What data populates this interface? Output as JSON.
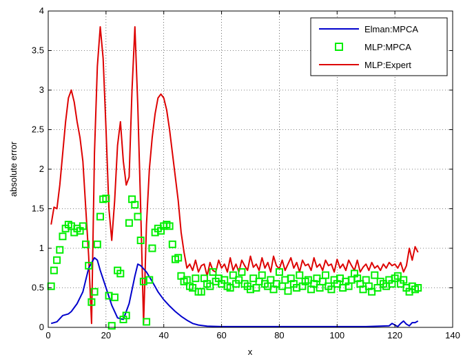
{
  "chart_data": {
    "type": "line",
    "xlabel": "x",
    "ylabel": "absolute error",
    "xlim": [
      0,
      140
    ],
    "ylim": [
      0,
      4
    ],
    "xticks": [
      "0",
      "20",
      "40",
      "60",
      "80",
      "100",
      "120",
      "140"
    ],
    "yticks": [
      "0",
      "0.5",
      "1",
      "1.5",
      "2",
      "2.5",
      "3",
      "3.5",
      "4"
    ],
    "grid": true,
    "legend_position": "top-right",
    "series": [
      {
        "name": "Elman:MPCA",
        "style": "line",
        "color": "#0000cc",
        "x": [
          1,
          3,
          5,
          7,
          8,
          10,
          12,
          14,
          16,
          17,
          18,
          20,
          22,
          24,
          26,
          28,
          30,
          31,
          32,
          34,
          36,
          38,
          40,
          42,
          44,
          46,
          48,
          50,
          52,
          55,
          60,
          70,
          80,
          90,
          100,
          110,
          118,
          119,
          120,
          121,
          122,
          123,
          124,
          125,
          126,
          127,
          128
        ],
        "y": [
          0.05,
          0.07,
          0.15,
          0.17,
          0.2,
          0.3,
          0.45,
          0.75,
          0.88,
          0.85,
          0.72,
          0.5,
          0.28,
          0.12,
          0.1,
          0.3,
          0.65,
          0.8,
          0.78,
          0.7,
          0.58,
          0.45,
          0.35,
          0.27,
          0.2,
          0.14,
          0.09,
          0.05,
          0.03,
          0.015,
          0.01,
          0.01,
          0.01,
          0.01,
          0.01,
          0.01,
          0.02,
          0.05,
          0.03,
          0.01,
          0.05,
          0.08,
          0.04,
          0.02,
          0.06,
          0.06,
          0.08
        ]
      },
      {
        "name": "MLP:MPCA",
        "style": "marker",
        "color": "#00ee00",
        "x": [
          1,
          2,
          3,
          4,
          5,
          6,
          7,
          8,
          9,
          10,
          11,
          12,
          13,
          14,
          15,
          16,
          17,
          18,
          19,
          20,
          21,
          22,
          23,
          24,
          25,
          26,
          27,
          28,
          29,
          30,
          31,
          32,
          33,
          34,
          35,
          36,
          37,
          38,
          39,
          40,
          41,
          42,
          43,
          44,
          45,
          46,
          47,
          48,
          49,
          50,
          51,
          52,
          53,
          54,
          55,
          56,
          57,
          58,
          59,
          60,
          61,
          62,
          63,
          64,
          65,
          66,
          67,
          68,
          69,
          70,
          71,
          72,
          73,
          74,
          75,
          76,
          77,
          78,
          79,
          80,
          81,
          82,
          83,
          84,
          85,
          86,
          87,
          88,
          89,
          90,
          91,
          92,
          93,
          94,
          95,
          96,
          97,
          98,
          99,
          100,
          101,
          102,
          103,
          104,
          105,
          106,
          107,
          108,
          109,
          110,
          111,
          112,
          113,
          114,
          115,
          116,
          117,
          118,
          119,
          120,
          121,
          122,
          123,
          124,
          125,
          126,
          127,
          128
        ],
        "y": [
          0.52,
          0.72,
          0.85,
          0.98,
          1.15,
          1.25,
          1.3,
          1.28,
          1.2,
          1.25,
          1.22,
          1.28,
          1.05,
          0.78,
          0.32,
          0.45,
          1.05,
          1.4,
          1.62,
          1.63,
          0.4,
          0.02,
          0.38,
          0.72,
          0.68,
          0.1,
          0.15,
          1.32,
          1.62,
          1.55,
          1.4,
          1.1,
          0.58,
          0.07,
          0.6,
          1.0,
          1.2,
          1.25,
          1.22,
          1.28,
          1.3,
          1.28,
          1.05,
          0.86,
          0.88,
          0.65,
          0.58,
          0.6,
          0.52,
          0.5,
          0.62,
          0.45,
          0.45,
          0.62,
          0.55,
          0.52,
          0.7,
          0.58,
          0.62,
          0.55,
          0.6,
          0.52,
          0.5,
          0.66,
          0.55,
          0.6,
          0.7,
          0.55,
          0.52,
          0.48,
          0.62,
          0.5,
          0.58,
          0.66,
          0.55,
          0.52,
          0.6,
          0.48,
          0.55,
          0.7,
          0.52,
          0.6,
          0.46,
          0.62,
          0.55,
          0.5,
          0.66,
          0.52,
          0.58,
          0.6,
          0.48,
          0.55,
          0.62,
          0.5,
          0.58,
          0.66,
          0.52,
          0.48,
          0.6,
          0.55,
          0.62,
          0.5,
          0.58,
          0.52,
          0.6,
          0.68,
          0.62,
          0.55,
          0.48,
          0.6,
          0.52,
          0.45,
          0.66,
          0.5,
          0.58,
          0.55,
          0.52,
          0.6,
          0.55,
          0.62,
          0.65,
          0.55,
          0.6,
          0.5,
          0.45,
          0.52,
          0.48,
          0.5
        ]
      },
      {
        "name": "MLP:Expert",
        "style": "line",
        "color": "#dd0000",
        "x": [
          1,
          2,
          3,
          4,
          5,
          6,
          7,
          8,
          9,
          10,
          11,
          12,
          13,
          14,
          15,
          16,
          17,
          18,
          19,
          20,
          21,
          22,
          23,
          24,
          25,
          26,
          27,
          28,
          29,
          30,
          31,
          32,
          33,
          34,
          35,
          36,
          37,
          38,
          39,
          40,
          41,
          42,
          43,
          44,
          45,
          46,
          47,
          48,
          49,
          50,
          51,
          52,
          53,
          54,
          55,
          56,
          57,
          58,
          59,
          60,
          61,
          62,
          63,
          64,
          65,
          66,
          67,
          68,
          69,
          70,
          71,
          72,
          73,
          74,
          75,
          76,
          77,
          78,
          79,
          80,
          81,
          82,
          83,
          84,
          85,
          86,
          87,
          88,
          89,
          90,
          91,
          92,
          93,
          94,
          95,
          96,
          97,
          98,
          99,
          100,
          101,
          102,
          103,
          104,
          105,
          106,
          107,
          108,
          109,
          110,
          111,
          112,
          113,
          114,
          115,
          116,
          117,
          118,
          119,
          120,
          121,
          122,
          123,
          124,
          125,
          126,
          127,
          128
        ],
        "y": [
          1.3,
          1.52,
          1.5,
          1.8,
          2.2,
          2.6,
          2.9,
          3.0,
          2.85,
          2.6,
          2.4,
          2.1,
          1.5,
          0.9,
          0.05,
          2.2,
          3.3,
          3.8,
          3.4,
          2.5,
          1.5,
          1.1,
          1.6,
          2.3,
          2.6,
          2.1,
          1.8,
          1.9,
          3.0,
          3.8,
          2.8,
          1.5,
          0.05,
          1.3,
          2.0,
          2.4,
          2.7,
          2.9,
          2.95,
          2.9,
          2.75,
          2.5,
          2.2,
          1.9,
          1.6,
          1.2,
          0.95,
          0.75,
          0.8,
          0.72,
          0.85,
          0.7,
          0.78,
          0.8,
          0.65,
          0.82,
          0.72,
          0.7,
          0.85,
          0.75,
          0.8,
          0.7,
          0.88,
          0.72,
          0.8,
          0.7,
          0.85,
          0.78,
          0.72,
          0.9,
          0.76,
          0.8,
          0.72,
          0.88,
          0.75,
          0.82,
          0.7,
          0.9,
          0.78,
          0.74,
          0.85,
          0.72,
          0.8,
          0.88,
          0.75,
          0.82,
          0.7,
          0.85,
          0.78,
          0.8,
          0.72,
          0.88,
          0.76,
          0.8,
          0.72,
          0.85,
          0.78,
          0.8,
          0.7,
          0.86,
          0.75,
          0.8,
          0.72,
          0.85,
          0.78,
          0.72,
          0.85,
          0.7,
          0.76,
          0.8,
          0.72,
          0.82,
          0.75,
          0.78,
          0.72,
          0.8,
          0.75,
          0.82,
          0.78,
          0.8,
          0.75,
          0.82,
          0.7,
          0.78,
          1.0,
          0.85,
          1.02,
          0.95
        ]
      }
    ]
  }
}
